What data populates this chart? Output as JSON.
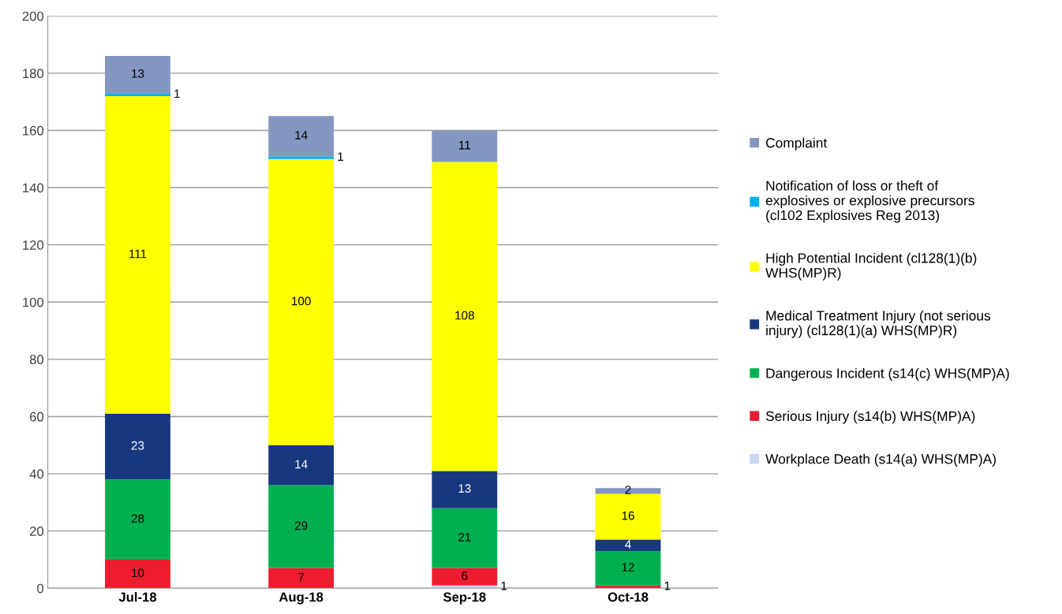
{
  "chart_data": {
    "type": "bar",
    "stacked": true,
    "categories": [
      "Jul-18",
      "Aug-18",
      "Sep-18",
      "Oct-18"
    ],
    "series": [
      {
        "name": "Workplace Death (s14(a) WHS(MP)A)",
        "color": "#c6d9f1",
        "values": [
          0,
          0,
          1,
          0
        ],
        "value_labels": [
          null,
          null,
          "1",
          null
        ]
      },
      {
        "name": "Serious Injury (s14(b) WHS(MP)A)",
        "color": "#ed1c2e",
        "values": [
          10,
          7,
          6,
          1
        ],
        "value_labels": [
          "10",
          "7",
          "6",
          "1"
        ]
      },
      {
        "name": "Dangerous Incident (s14(c) WHS(MP)A)",
        "color": "#00b050",
        "values": [
          28,
          29,
          21,
          12
        ],
        "value_labels": [
          "28",
          "29",
          "21",
          "12"
        ]
      },
      {
        "name": "Medical Treatment Injury (not serious injury) (cl128(1)(a) WHS(MP)R)",
        "color": "#17387f",
        "values": [
          23,
          14,
          13,
          4
        ],
        "value_labels": [
          "23",
          "14",
          "13",
          "4"
        ]
      },
      {
        "name": "High Potential Incident (cl128(1)(b) WHS(MP)R)",
        "color": "#ffff00",
        "values": [
          111,
          100,
          108,
          16
        ],
        "value_labels": [
          "111",
          "100",
          "108",
          "16"
        ]
      },
      {
        "name": "Notification of loss or theft of explosives or explosive precursors (cl102 Explosives Reg 2013)",
        "color": "#00b0f0",
        "values": [
          1,
          1,
          0,
          0
        ],
        "value_labels": [
          "1",
          "1",
          null,
          null
        ]
      },
      {
        "name": "Complaint",
        "color": "#8497c0",
        "values": [
          13,
          14,
          11,
          2
        ],
        "value_labels": [
          "13",
          "14",
          "11",
          "2"
        ]
      }
    ],
    "ylim": [
      0,
      200
    ],
    "yticks": [
      0,
      20,
      40,
      60,
      80,
      100,
      120,
      140,
      160,
      180,
      200
    ],
    "grid": "y",
    "legend": "right"
  }
}
